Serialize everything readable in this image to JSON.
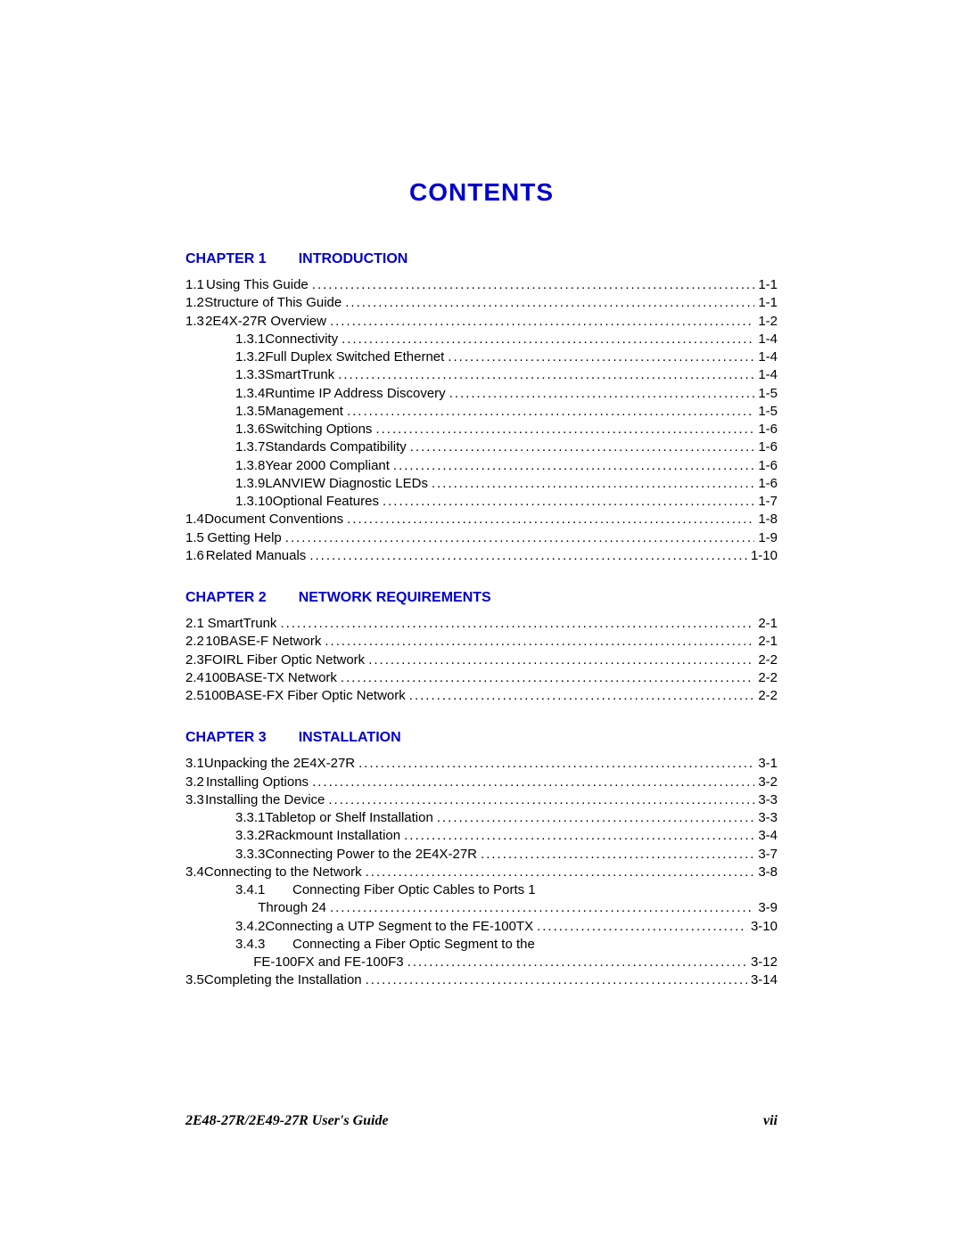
{
  "title": "CONTENTS",
  "footer": {
    "left": "2E48-27R/2E49-27R User's Guide",
    "right": "vii"
  },
  "heading_color": "#0000cc",
  "text_color": "#000000",
  "chapters": [
    {
      "label": "CHAPTER 1",
      "name": "INTRODUCTION",
      "entries": [
        {
          "lvl": 1,
          "num": "1.1",
          "label": "Using This Guide",
          "page": "1-1"
        },
        {
          "lvl": 1,
          "num": "1.2",
          "label": "Structure of This Guide",
          "page": "1-1"
        },
        {
          "lvl": 1,
          "num": "1.3",
          "label": "2E4X-27R Overview",
          "page": "1-2"
        },
        {
          "lvl": 2,
          "num": "1.3.1",
          "label": "Connectivity",
          "page": "1-4"
        },
        {
          "lvl": 2,
          "num": "1.3.2",
          "label": "Full Duplex Switched Ethernet",
          "page": "1-4"
        },
        {
          "lvl": 2,
          "num": "1.3.3",
          "label": "SmartTrunk",
          "page": "1-4"
        },
        {
          "lvl": 2,
          "num": "1.3.4",
          "label": "Runtime IP Address Discovery",
          "page": "1-5"
        },
        {
          "lvl": 2,
          "num": "1.3.5",
          "label": "Management",
          "page": "1-5"
        },
        {
          "lvl": 2,
          "num": "1.3.6",
          "label": "Switching Options",
          "page": "1-6"
        },
        {
          "lvl": 2,
          "num": "1.3.7",
          "label": "Standards Compatibility",
          "page": "1-6"
        },
        {
          "lvl": 2,
          "num": "1.3.8",
          "label": "Year 2000 Compliant",
          "page": "1-6"
        },
        {
          "lvl": 2,
          "num": "1.3.9",
          "label": "LANVIEW Diagnostic LEDs",
          "page": "1-6"
        },
        {
          "lvl": 2,
          "num": "1.3.10",
          "label": "Optional Features",
          "page": "1-7"
        },
        {
          "lvl": 1,
          "num": "1.4",
          "label": "Document Conventions",
          "page": "1-8"
        },
        {
          "lvl": 1,
          "num": "1.5",
          "label": "Getting Help",
          "page": "1-9"
        },
        {
          "lvl": 1,
          "num": "1.6",
          "label": "Related Manuals",
          "page": "1-10"
        }
      ]
    },
    {
      "label": "CHAPTER 2",
      "name": "NETWORK REQUIREMENTS",
      "entries": [
        {
          "lvl": 1,
          "num": "2.1",
          "label": "SmartTrunk",
          "page": "2-1"
        },
        {
          "lvl": 1,
          "num": "2.2",
          "label": "10BASE-F Network",
          "page": "2-1"
        },
        {
          "lvl": 1,
          "num": "2.3",
          "label": "FOIRL Fiber Optic Network",
          "page": "2-2"
        },
        {
          "lvl": 1,
          "num": "2.4",
          "label": "100BASE-TX Network",
          "page": "2-2"
        },
        {
          "lvl": 1,
          "num": "2.5",
          "label": "100BASE-FX Fiber Optic Network",
          "page": "2-2"
        }
      ]
    },
    {
      "label": "CHAPTER 3",
      "name": "INSTALLATION",
      "entries": [
        {
          "lvl": 1,
          "num": "3.1",
          "label": "Unpacking the 2E4X-27R",
          "page": "3-1"
        },
        {
          "lvl": 1,
          "num": "3.2",
          "label": "Installing Options",
          "page": "3-2"
        },
        {
          "lvl": 1,
          "num": "3.3",
          "label": "Installing the Device",
          "page": "3-3"
        },
        {
          "lvl": 2,
          "num": "3.3.1",
          "label": "Tabletop or Shelf Installation",
          "page": "3-3"
        },
        {
          "lvl": 2,
          "num": "3.3.2",
          "label": "Rackmount Installation",
          "page": "3-4"
        },
        {
          "lvl": 2,
          "num": "3.3.3",
          "label": "Connecting Power to the 2E4X-27R",
          "page": "3-7"
        },
        {
          "lvl": 1,
          "num": "3.4",
          "label": "Connecting to the Network",
          "page": "3-8"
        },
        {
          "lvl": 2,
          "num": "3.4.1",
          "label": "Connecting Fiber Optic Cables to Ports 1",
          "wrap": "Through 24",
          "page": "3-9"
        },
        {
          "lvl": 2,
          "num": "3.4.2",
          "label": "Connecting a UTP Segment to the FE-100TX",
          "page": "3-10"
        },
        {
          "lvl": 2,
          "num": "3.4.3",
          "label": "Connecting a Fiber Optic Segment to the",
          "wrap": "FE-100FX and FE-100F3",
          "page": "3-12"
        },
        {
          "lvl": 1,
          "num": "3.5",
          "label": "Completing the Installation",
          "page": "3-14"
        }
      ]
    }
  ]
}
